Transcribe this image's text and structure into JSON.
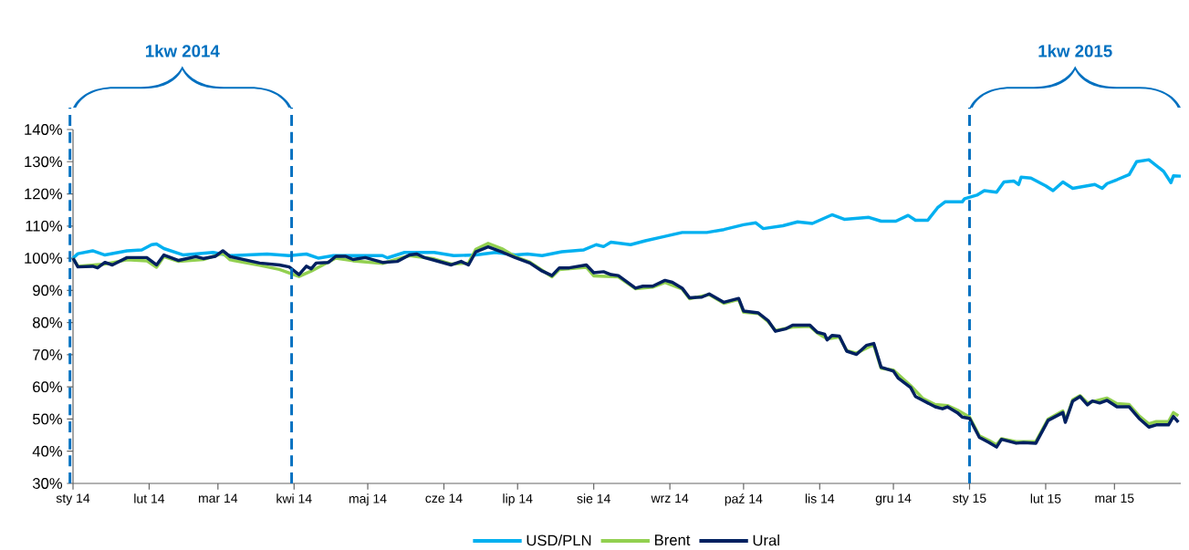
{
  "chart_data": {
    "type": "line",
    "xlim": [
      "2014-01-01",
      "2015-03-28"
    ],
    "xticks": [
      {
        "value": "2014-01-01",
        "label": "sty 14"
      },
      {
        "value": "2014-02-01",
        "label": "lut 14"
      },
      {
        "value": "2014-03-01",
        "label": "mar 14"
      },
      {
        "value": "2014-04-01",
        "label": "kwi 14"
      },
      {
        "value": "2014-05-01",
        "label": "maj 14"
      },
      {
        "value": "2014-06-01",
        "label": "cze 14"
      },
      {
        "value": "2014-07-01",
        "label": "lip 14"
      },
      {
        "value": "2014-08-01",
        "label": "sie 14"
      },
      {
        "value": "2014-09-01",
        "label": "wrz 14"
      },
      {
        "value": "2014-10-01",
        "label": "paź 14"
      },
      {
        "value": "2014-11-01",
        "label": "lis 14"
      },
      {
        "value": "2014-12-01",
        "label": "gru 14"
      },
      {
        "value": "2015-01-01",
        "label": "sty 15"
      },
      {
        "value": "2015-02-01",
        "label": "lut 15"
      },
      {
        "value": "2015-03-01",
        "label": "mar 15"
      }
    ],
    "ylim": [
      30,
      140
    ],
    "yticks": [
      {
        "value": 30,
        "label": "30%"
      },
      {
        "value": 40,
        "label": "40%"
      },
      {
        "value": 50,
        "label": "50%"
      },
      {
        "value": 60,
        "label": "60%"
      },
      {
        "value": 70,
        "label": "70%"
      },
      {
        "value": 80,
        "label": "80%"
      },
      {
        "value": 90,
        "label": "90%"
      },
      {
        "value": 100,
        "label": "100%"
      },
      {
        "value": 110,
        "label": "110%"
      },
      {
        "value": 120,
        "label": "120%"
      },
      {
        "value": 130,
        "label": "130%"
      },
      {
        "value": 140,
        "label": "140%"
      }
    ],
    "legend": "bottom",
    "line_style": "solid",
    "ref_lines": [
      {
        "axis": "x",
        "value": "2014-01-01",
        "color": "#0070c0",
        "line_style": "dashed"
      },
      {
        "axis": "x",
        "value": "2014-03-31",
        "color": "#0070c0",
        "line_style": "dashed"
      },
      {
        "axis": "x",
        "value": "2015-01-01",
        "color": "#0070c0",
        "line_style": "dashed"
      }
    ],
    "annotations": [
      "1kw 2014",
      "1kw 2015"
    ],
    "series": [
      {
        "name": "USD/PLN",
        "color": "#00b0f0",
        "x": [
          "2014-01-01",
          "2014-01-03",
          "2014-01-09",
          "2014-01-14",
          "2014-01-23",
          "2014-01-29",
          "2014-02-02",
          "2014-02-04",
          "2014-02-07",
          "2014-02-15",
          "2014-02-27",
          "2014-03-06",
          "2014-03-21",
          "2014-03-30",
          "2014-04-06",
          "2014-04-11",
          "2014-04-17",
          "2014-05-07",
          "2014-05-09",
          "2014-05-16",
          "2014-05-28",
          "2014-06-05",
          "2014-06-14",
          "2014-06-22",
          "2014-06-30",
          "2014-07-05",
          "2014-07-11",
          "2014-07-19",
          "2014-07-28",
          "2014-08-02",
          "2014-08-05",
          "2014-08-08",
          "2014-08-16",
          "2014-08-22",
          "2014-08-30",
          "2014-09-06",
          "2014-09-16",
          "2014-09-23",
          "2014-10-01",
          "2014-10-06",
          "2014-10-09",
          "2014-10-17",
          "2014-10-23",
          "2014-10-29",
          "2014-11-06",
          "2014-11-11",
          "2014-11-21",
          "2014-11-26",
          "2014-12-02",
          "2014-12-07",
          "2014-12-10",
          "2014-12-15",
          "2014-12-19",
          "2014-12-22",
          "2014-12-29",
          "2014-12-30",
          "2015-01-04",
          "2015-01-07",
          "2015-01-12",
          "2015-01-15",
          "2015-01-19",
          "2015-01-21",
          "2015-01-22",
          "2015-01-26",
          "2015-02-01",
          "2015-02-04",
          "2015-02-08",
          "2015-02-12",
          "2015-02-21",
          "2015-02-24",
          "2015-02-26",
          "2015-03-02",
          "2015-03-07",
          "2015-03-10",
          "2015-03-15",
          "2015-03-21",
          "2015-03-24",
          "2015-03-25",
          "2015-03-28"
        ],
        "values": [
          100,
          101.4,
          102.3,
          101,
          102.3,
          102.6,
          104.2,
          104.4,
          103,
          101,
          101.8,
          100.8,
          101.3,
          100.8,
          101.3,
          100,
          100.8,
          100.8,
          100.1,
          101.8,
          101.8,
          100.8,
          101,
          101.8,
          101,
          101.3,
          100.8,
          102,
          102.6,
          104.2,
          103.6,
          105,
          104.2,
          105.4,
          106.8,
          108,
          108,
          108.9,
          110.4,
          111,
          109.2,
          110.1,
          111.3,
          110.8,
          113.5,
          112.1,
          112.7,
          111.5,
          111.5,
          113.3,
          111.8,
          111.8,
          115.7,
          117.5,
          117.5,
          118.5,
          119.6,
          121,
          120.5,
          123.7,
          124,
          122.9,
          125.2,
          124.9,
          122.5,
          121,
          123.7,
          121.7,
          122.9,
          121.7,
          123.2,
          124.4,
          126,
          130,
          130.6,
          127,
          123.5,
          125.6,
          125.5
        ]
      },
      {
        "name": "Brent",
        "color": "#92d050",
        "x": [
          "2014-01-01",
          "2014-01-03",
          "2014-01-14",
          "2014-01-23",
          "2014-01-31",
          "2014-02-04",
          "2014-02-07",
          "2014-02-13",
          "2014-02-23",
          "2014-03-03",
          "2014-03-06",
          "2014-03-18",
          "2014-03-26",
          "2014-04-03",
          "2014-04-08",
          "2014-04-18",
          "2014-04-25",
          "2014-05-07",
          "2014-05-18",
          "2014-05-28",
          "2014-06-04",
          "2014-06-11",
          "2014-06-14",
          "2014-06-19",
          "2014-06-25",
          "2014-06-30",
          "2014-07-06",
          "2014-07-15",
          "2014-07-18",
          "2014-07-29",
          "2014-08-01",
          "2014-08-11",
          "2014-08-18",
          "2014-08-25",
          "2014-08-30",
          "2014-09-06",
          "2014-09-09",
          "2014-09-17",
          "2014-09-23",
          "2014-09-29",
          "2014-10-01",
          "2014-10-07",
          "2014-10-11",
          "2014-10-14",
          "2014-10-21",
          "2014-10-28",
          "2014-10-31",
          "2014-11-04",
          "2014-11-09",
          "2014-11-12",
          "2014-11-16",
          "2014-11-23",
          "2014-11-24",
          "2014-11-26",
          "2014-12-01",
          "2014-12-08",
          "2014-12-13",
          "2014-12-18",
          "2014-12-23",
          "2014-12-27",
          "2015-01-01",
          "2015-01-05",
          "2015-01-09",
          "2015-01-12",
          "2015-01-14",
          "2015-01-20",
          "2015-01-28",
          "2015-02-02",
          "2015-02-08",
          "2015-02-09",
          "2015-02-12",
          "2015-02-15",
          "2015-02-18",
          "2015-02-26",
          "2015-03-02",
          "2015-03-07",
          "2015-03-11",
          "2015-03-15",
          "2015-03-18",
          "2015-03-23",
          "2015-03-25",
          "2015-03-27"
        ],
        "values": [
          100,
          97.5,
          98.2,
          99.5,
          99.2,
          97.2,
          100.5,
          99,
          99.6,
          101.5,
          99.5,
          97.8,
          96.5,
          94.3,
          96,
          100,
          99.2,
          98.4,
          100.8,
          99.8,
          98.2,
          98.5,
          102.8,
          104.6,
          102.8,
          100.5,
          98.8,
          94.2,
          96.5,
          97.2,
          94.5,
          94.2,
          90.5,
          91,
          92.5,
          90.4,
          87.4,
          88.7,
          86,
          87.2,
          83.2,
          82.8,
          80.3,
          77.5,
          78.6,
          78.8,
          76.8,
          74.9,
          75.5,
          71.3,
          70.5,
          73.2,
          70.6,
          65.8,
          65.2,
          60.4,
          56.4,
          54.5,
          54.2,
          52.8,
          50.6,
          44.8,
          43.3,
          42,
          43.9,
          43,
          43,
          50,
          52.5,
          49.4,
          56,
          57.3,
          55,
          56.5,
          54.8,
          54.5,
          51,
          48.5,
          49.2,
          49.2,
          52,
          51
        ]
      },
      {
        "name": "Ural",
        "color": "#002060",
        "x": [
          "2014-01-01",
          "2014-01-03",
          "2014-01-09",
          "2014-01-11",
          "2014-01-14",
          "2014-01-17",
          "2014-01-23",
          "2014-01-31",
          "2014-02-04",
          "2014-02-07",
          "2014-02-13",
          "2014-02-20",
          "2014-02-23",
          "2014-02-28",
          "2014-03-03",
          "2014-03-06",
          "2014-03-18",
          "2014-03-26",
          "2014-03-30",
          "2014-04-03",
          "2014-04-06",
          "2014-04-08",
          "2014-04-10",
          "2014-04-15",
          "2014-04-18",
          "2014-04-22",
          "2014-04-25",
          "2014-04-30",
          "2014-05-07",
          "2014-05-13",
          "2014-05-18",
          "2014-05-21",
          "2014-05-24",
          "2014-05-28",
          "2014-06-04",
          "2014-06-08",
          "2014-06-11",
          "2014-06-14",
          "2014-06-19",
          "2014-06-25",
          "2014-06-30",
          "2014-07-06",
          "2014-07-11",
          "2014-07-15",
          "2014-07-18",
          "2014-07-22",
          "2014-07-29",
          "2014-08-01",
          "2014-08-05",
          "2014-08-08",
          "2014-08-11",
          "2014-08-18",
          "2014-08-21",
          "2014-08-25",
          "2014-08-30",
          "2014-09-02",
          "2014-09-06",
          "2014-09-09",
          "2014-09-14",
          "2014-09-17",
          "2014-09-23",
          "2014-09-29",
          "2014-10-01",
          "2014-10-07",
          "2014-10-11",
          "2014-10-14",
          "2014-10-18",
          "2014-10-21",
          "2014-10-28",
          "2014-10-31",
          "2014-11-03",
          "2014-11-04",
          "2014-11-06",
          "2014-11-09",
          "2014-11-12",
          "2014-11-16",
          "2014-11-20",
          "2014-11-23",
          "2014-11-24",
          "2014-11-26",
          "2014-12-01",
          "2014-12-03",
          "2014-12-08",
          "2014-12-10",
          "2014-12-13",
          "2014-12-18",
          "2014-12-21",
          "2014-12-23",
          "2014-12-27",
          "2014-12-29",
          "2015-01-01",
          "2015-01-05",
          "2015-01-09",
          "2015-01-12",
          "2015-01-14",
          "2015-01-20",
          "2015-01-23",
          "2015-01-28",
          "2015-02-02",
          "2015-02-08",
          "2015-02-09",
          "2015-02-12",
          "2015-02-15",
          "2015-02-18",
          "2015-02-20",
          "2015-02-23",
          "2015-02-26",
          "2015-03-02",
          "2015-03-07",
          "2015-03-11",
          "2015-03-15",
          "2015-03-18",
          "2015-03-23",
          "2015-03-25",
          "2015-03-27"
        ],
        "values": [
          100,
          97.3,
          97.5,
          97,
          98.7,
          97.9,
          100.2,
          100.2,
          97.9,
          101,
          99.3,
          100.5,
          99.9,
          100.6,
          102.3,
          100.5,
          98.5,
          97.9,
          97.3,
          94.9,
          97.5,
          96.7,
          98.5,
          98.7,
          100.6,
          100.6,
          99.6,
          100.2,
          98.7,
          99,
          101,
          101.3,
          100.2,
          99.4,
          97.9,
          99,
          97.9,
          102,
          103.5,
          101.8,
          100.2,
          98.5,
          96,
          94.6,
          97,
          97,
          97.9,
          95.5,
          95.8,
          94.9,
          94.6,
          90.7,
          91.3,
          91.3,
          93.1,
          92.5,
          90.7,
          87.7,
          87.9,
          88.9,
          86.3,
          87.5,
          83.6,
          83,
          80.6,
          77.3,
          78,
          79.2,
          79.2,
          77,
          76.4,
          74.6,
          76,
          75.8,
          71.1,
          70.1,
          72.9,
          73.5,
          71.1,
          66.1,
          64.9,
          62.7,
          59.8,
          57,
          55.8,
          53.8,
          53.2,
          53.8,
          52,
          50.6,
          50.2,
          44.3,
          42.7,
          41.3,
          43.7,
          42.5,
          42.7,
          42.5,
          49.6,
          52,
          49,
          55.6,
          57,
          54.4,
          55.6,
          55,
          55.8,
          53.8,
          53.8,
          50.2,
          47.5,
          48.2,
          48.2,
          50.8,
          49
        ]
      }
    ]
  }
}
